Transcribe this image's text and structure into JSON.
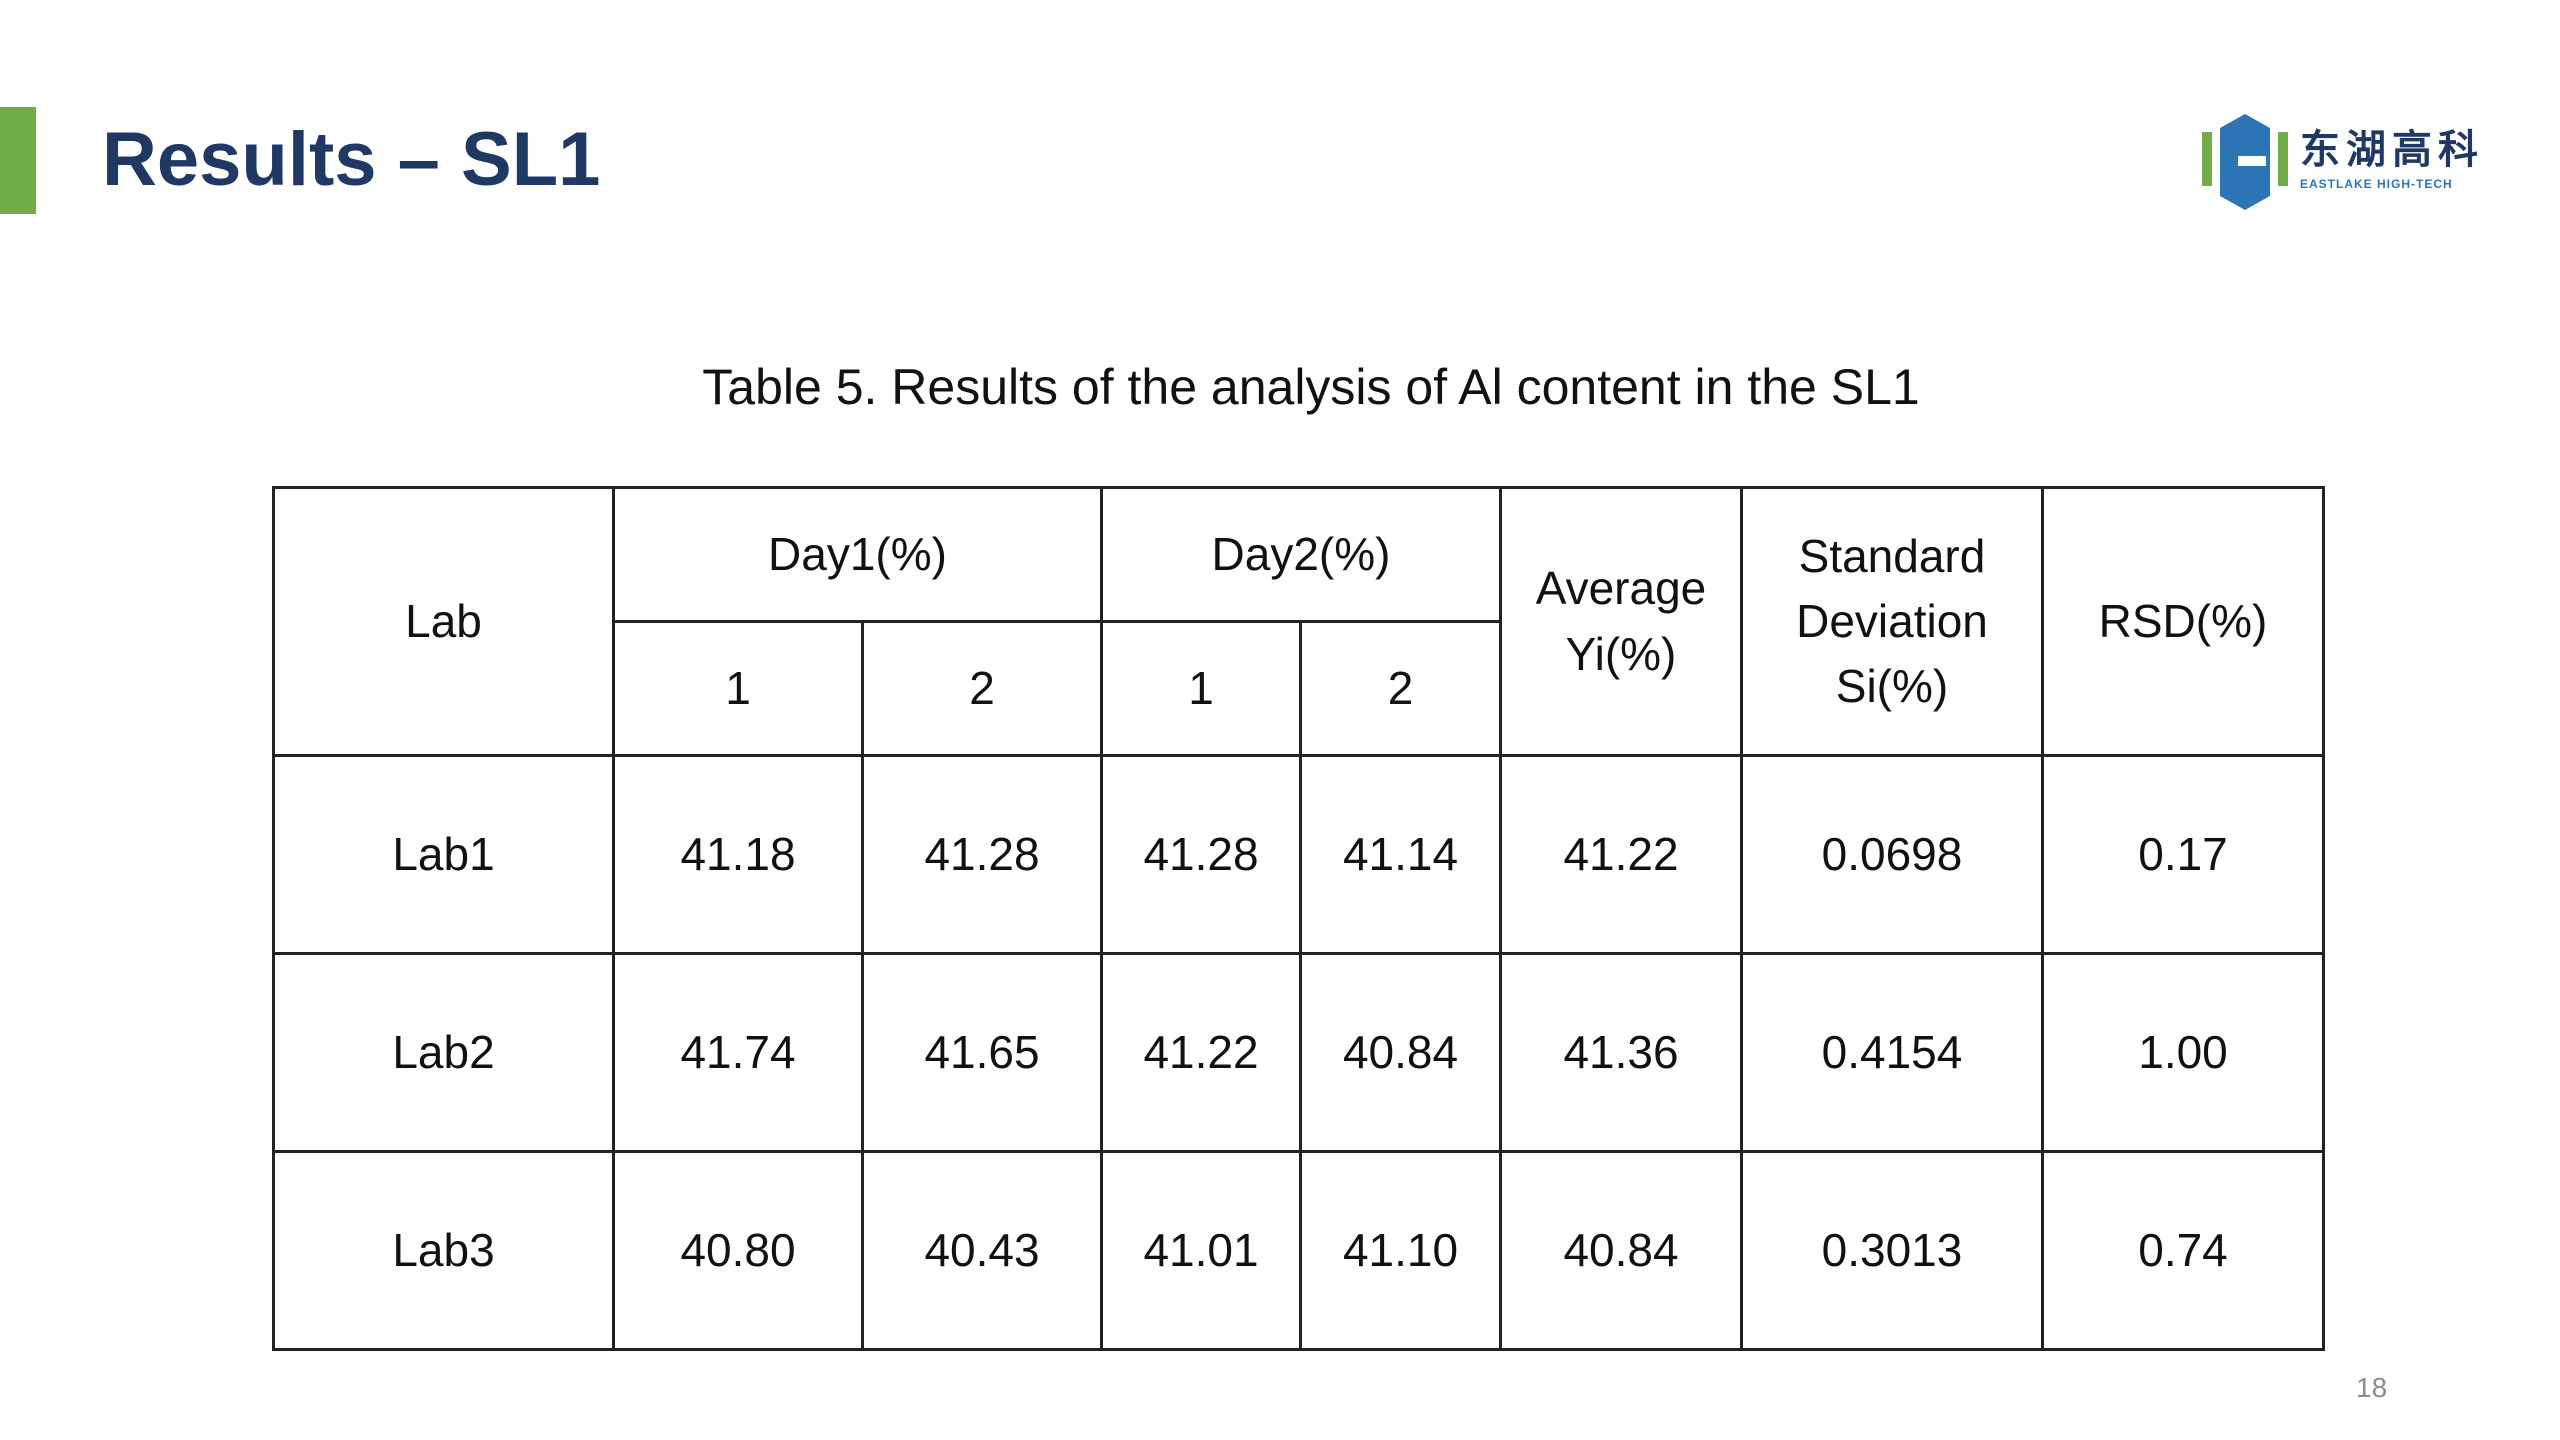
{
  "header": {
    "title": "Results – SL1"
  },
  "logo": {
    "name_cn": "东湖高科",
    "name_en": "EASTLAKE HIGH-TECH"
  },
  "table": {
    "caption": "Table 5. Results of the analysis of Al content in the SL1",
    "columns": {
      "lab": "Lab",
      "day1": "Day1(%)",
      "day2": "Day2(%)",
      "average": "Average Yi(%)",
      "sd": "Standard Deviation Si(%)",
      "rsd": "RSD(%)",
      "runs": [
        "1",
        "2",
        "1",
        "2"
      ]
    },
    "rows": [
      [
        "Lab1",
        "41.18",
        "41.28",
        "41.28",
        "41.14",
        "41.22",
        "0.0698",
        "0.17"
      ],
      [
        "Lab2",
        "41.74",
        "41.65",
        "41.22",
        "40.84",
        "41.36",
        "0.4154",
        "1.00"
      ],
      [
        "Lab3",
        "40.80",
        "40.43",
        "41.01",
        "41.10",
        "40.84",
        "0.3013",
        "0.74"
      ]
    ]
  },
  "page_number": "18"
}
